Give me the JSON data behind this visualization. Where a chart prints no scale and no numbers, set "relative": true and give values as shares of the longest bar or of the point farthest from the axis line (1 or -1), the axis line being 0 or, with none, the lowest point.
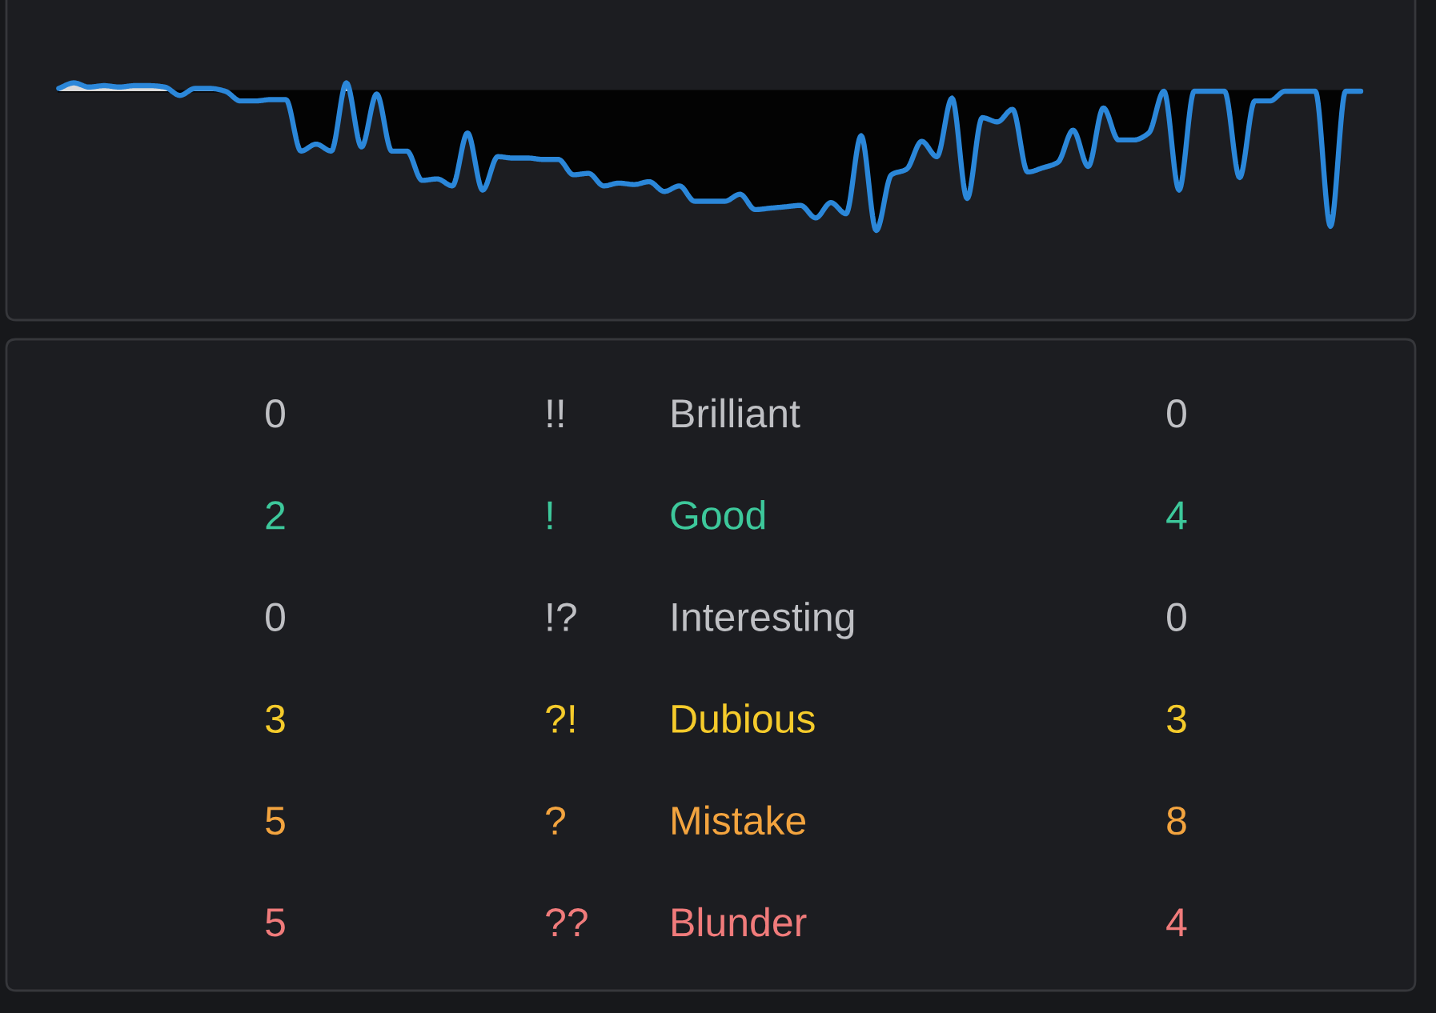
{
  "chart_data": [
    {
      "type": "area",
      "relative": true,
      "color": "#2b87d9",
      "categories": [
        null,
        null,
        null,
        null,
        null,
        null,
        null,
        null,
        null,
        null,
        null,
        null,
        null,
        null,
        null,
        null,
        null,
        null,
        null,
        null,
        null,
        null,
        null,
        null,
        null,
        null,
        null,
        null,
        null,
        null,
        null,
        null,
        null,
        null,
        null,
        null,
        null,
        null,
        null,
        null,
        null,
        null,
        null,
        null,
        null,
        null,
        null,
        null,
        null,
        null,
        null,
        null,
        null,
        null,
        null,
        null,
        null,
        null,
        null,
        null,
        null,
        null,
        null,
        null,
        null,
        null,
        null,
        null,
        null,
        null,
        null,
        null,
        null,
        null,
        null,
        null,
        null,
        null,
        null,
        null,
        null,
        null,
        null,
        null,
        null,
        null,
        null
      ],
      "values": [
        0.02,
        0.06,
        0.03,
        0.04,
        0.03,
        0.04,
        0.04,
        0.03,
        -0.03,
        0.02,
        0.02,
        0.0,
        -0.07,
        -0.07,
        -0.06,
        -0.06,
        -0.43,
        -0.38,
        -0.43,
        0.06,
        -0.4,
        -0.02,
        -0.43,
        -0.43,
        -0.64,
        -0.63,
        -0.68,
        -0.3,
        -0.71,
        -0.47,
        -0.48,
        -0.48,
        -0.49,
        -0.49,
        -0.6,
        -0.59,
        -0.68,
        -0.66,
        -0.67,
        -0.65,
        -0.72,
        -0.68,
        -0.79,
        -0.79,
        -0.79,
        -0.74,
        -0.85,
        -0.84,
        -0.83,
        -0.82,
        -0.91,
        -0.8,
        -0.88,
        -0.32,
        -1,
        -0.6,
        -0.56,
        -0.36,
        -0.47,
        -0.05,
        -0.77,
        -0.19,
        -0.22,
        -0.13,
        -0.58,
        -0.55,
        -0.51,
        -0.28,
        -0.54,
        -0.12,
        -0.35,
        -0.35,
        -0.3,
        0,
        -0.71,
        0,
        0,
        0,
        -0.62,
        -0.07,
        -0.07,
        0,
        0,
        0,
        -0.97,
        0,
        0
      ]
    },
    {
      "type": "other",
      "data_labels": true,
      "categories": [
        "Brilliant",
        "Good",
        "Interesting",
        "Dubious",
        "Mistake",
        "Blunder"
      ],
      "y2_categories": [
        "!!",
        "!",
        "!?",
        "?!",
        "?",
        "??"
      ],
      "series": [
        {
          "values": [
            0,
            2,
            0,
            3,
            5,
            5
          ]
        },
        {
          "values": [
            0,
            4,
            0,
            3,
            8,
            4
          ]
        }
      ],
      "colors": [
        "#bfc0c4",
        "#3dc89b",
        "#bfc0c4",
        "#f5cb2b",
        "#f3a43f",
        "#f07b7b"
      ]
    }
  ]
}
